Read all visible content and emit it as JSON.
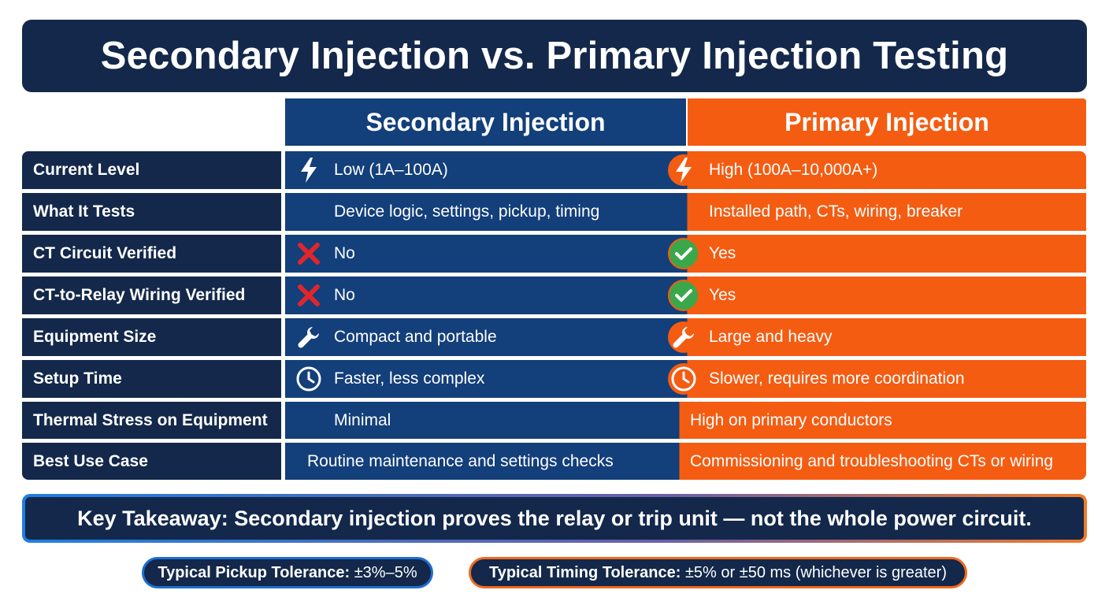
{
  "title": "Secondary Injection vs. Primary Injection Testing",
  "columns": {
    "secondary": "Secondary Injection",
    "primary": "Primary Injection"
  },
  "rows": [
    {
      "label": "Current Level",
      "secondary": "Low (1A–100A)",
      "primary": "High (100A–10,000A+)",
      "secondary_icon": "lightning-icon",
      "primary_icon": "lightning-icon"
    },
    {
      "label": "What It Tests",
      "secondary": "Device logic, settings, pickup, timing",
      "primary": "Installed path, CTs, wiring, breaker"
    },
    {
      "label": "CT Circuit Verified",
      "secondary": "No",
      "primary": "Yes",
      "secondary_icon": "cross-icon",
      "primary_icon": "check-icon"
    },
    {
      "label": "CT-to-Relay Wiring Verified",
      "secondary": "No",
      "primary": "Yes",
      "secondary_icon": "cross-icon",
      "primary_icon": "check-icon"
    },
    {
      "label": "Equipment Size",
      "secondary": "Compact and portable",
      "primary": "Large and heavy",
      "secondary_icon": "wrench-icon",
      "primary_icon": "wrench-icon"
    },
    {
      "label": "Setup Time",
      "secondary": "Faster, less complex",
      "primary": "Slower, requires more coordination",
      "secondary_icon": "clock-icon",
      "primary_icon": "clock-icon"
    },
    {
      "label": "Thermal Stress on Equipment",
      "secondary": "Minimal",
      "primary": "High on primary conductors"
    },
    {
      "label": "Best Use Case",
      "secondary": "Routine maintenance and settings checks",
      "primary": "Commissioning and troubleshooting CTs or wiring"
    }
  ],
  "takeaway": "Key Takeaway: Secondary injection proves the relay or trip unit — not the whole power circuit.",
  "tolerances": {
    "pickup_label": "Typical Pickup Tolerance:",
    "pickup_value": "±3%–5%",
    "timing_label": "Typical Timing Tolerance:",
    "timing_value": "±5% or ±50 ms (whichever is greater)"
  },
  "colors": {
    "navy": "#13284a",
    "secondary_blue": "#133f7a",
    "primary_orange": "#f45c12",
    "check_green": "#3aa84a",
    "cross_red": "#e0262b"
  }
}
